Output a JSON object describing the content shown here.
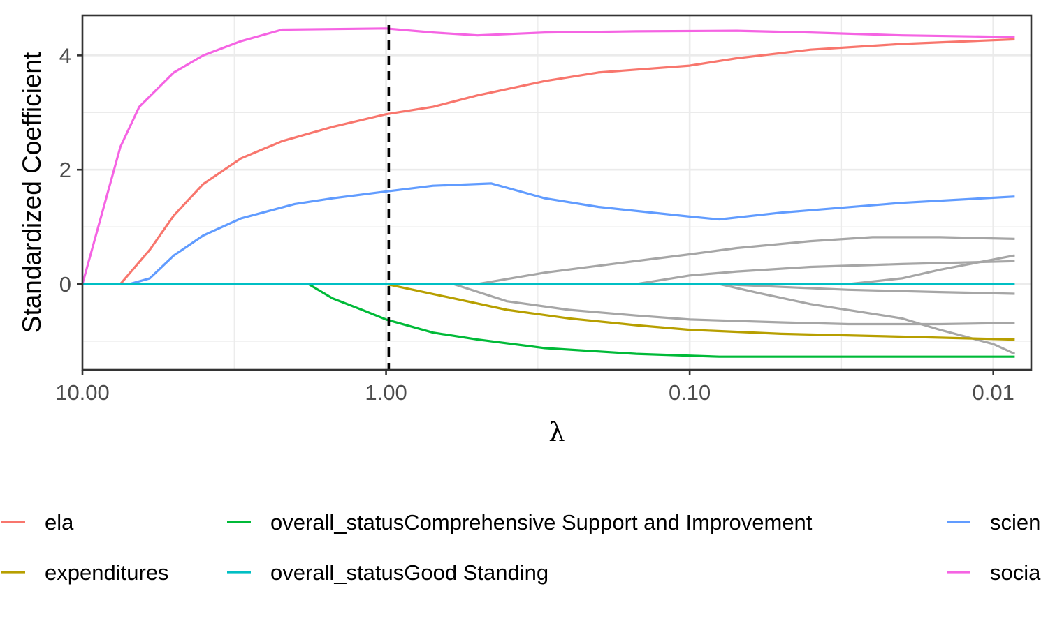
{
  "chart_data": {
    "type": "line",
    "xlabel": "λ",
    "ylabel": "Standardized Coefficient",
    "x_scale": "log10-reversed",
    "xlim": [
      10.0,
      0.0075
    ],
    "ylim": [
      -1.5,
      4.7
    ],
    "x_ticks": [
      {
        "value": 10.0,
        "label": "10.00"
      },
      {
        "value": 1.0,
        "label": "1.00"
      },
      {
        "value": 0.1,
        "label": "0.10"
      },
      {
        "value": 0.01,
        "label": "0.01"
      }
    ],
    "y_ticks": [
      {
        "value": 0,
        "label": "0"
      },
      {
        "value": 2,
        "label": "2"
      },
      {
        "value": 4,
        "label": "4"
      }
    ],
    "vline": {
      "x": 0.98,
      "style": "dashed",
      "color": "#000000"
    },
    "grid": true,
    "legend_position": "bottom",
    "series": [
      {
        "name": "social",
        "color": "#F564E3",
        "legend": true,
        "points": [
          [
            10,
            0
          ],
          [
            7.5,
            2.4
          ],
          [
            6.5,
            3.1
          ],
          [
            5,
            3.7
          ],
          [
            4,
            4.0
          ],
          [
            3,
            4.25
          ],
          [
            2.2,
            4.45
          ],
          [
            1.5,
            4.46
          ],
          [
            1.0,
            4.47
          ],
          [
            0.7,
            4.4
          ],
          [
            0.5,
            4.35
          ],
          [
            0.3,
            4.4
          ],
          [
            0.15,
            4.42
          ],
          [
            0.07,
            4.43
          ],
          [
            0.04,
            4.4
          ],
          [
            0.02,
            4.35
          ],
          [
            0.0085,
            4.32
          ]
        ]
      },
      {
        "name": "ela",
        "color": "#F8766D",
        "legend": true,
        "points": [
          [
            10,
            0
          ],
          [
            7.5,
            0
          ],
          [
            6,
            0.6
          ],
          [
            5,
            1.2
          ],
          [
            4,
            1.75
          ],
          [
            3,
            2.2
          ],
          [
            2.2,
            2.5
          ],
          [
            1.5,
            2.75
          ],
          [
            1.0,
            2.97
          ],
          [
            0.7,
            3.1
          ],
          [
            0.5,
            3.3
          ],
          [
            0.3,
            3.55
          ],
          [
            0.2,
            3.7
          ],
          [
            0.1,
            3.82
          ],
          [
            0.07,
            3.95
          ],
          [
            0.04,
            4.1
          ],
          [
            0.02,
            4.2
          ],
          [
            0.0085,
            4.28
          ]
        ]
      },
      {
        "name": "science",
        "color": "#619CFF",
        "legend": true,
        "points": [
          [
            10,
            0
          ],
          [
            7,
            0
          ],
          [
            6,
            0.1
          ],
          [
            5,
            0.5
          ],
          [
            4,
            0.85
          ],
          [
            3,
            1.15
          ],
          [
            2,
            1.4
          ],
          [
            1.5,
            1.5
          ],
          [
            1.0,
            1.62
          ],
          [
            0.7,
            1.72
          ],
          [
            0.45,
            1.76
          ],
          [
            0.3,
            1.5
          ],
          [
            0.2,
            1.35
          ],
          [
            0.1,
            1.18
          ],
          [
            0.08,
            1.13
          ],
          [
            0.05,
            1.25
          ],
          [
            0.02,
            1.42
          ],
          [
            0.0085,
            1.53
          ]
        ]
      },
      {
        "name": "expenditures",
        "color": "#B79F00",
        "legend": true,
        "points": [
          [
            10,
            0
          ],
          [
            1.0,
            0
          ],
          [
            0.6,
            -0.25
          ],
          [
            0.4,
            -0.45
          ],
          [
            0.25,
            -0.6
          ],
          [
            0.15,
            -0.72
          ],
          [
            0.1,
            -0.8
          ],
          [
            0.05,
            -0.87
          ],
          [
            0.02,
            -0.92
          ],
          [
            0.0085,
            -0.97
          ]
        ]
      },
      {
        "name": "overall_statusComprehensive Support and Improvement",
        "color": "#00BA38",
        "legend": true,
        "points": [
          [
            10,
            0
          ],
          [
            1.8,
            0
          ],
          [
            1.5,
            -0.25
          ],
          [
            1.2,
            -0.45
          ],
          [
            1.0,
            -0.62
          ],
          [
            0.7,
            -0.85
          ],
          [
            0.5,
            -0.97
          ],
          [
            0.3,
            -1.12
          ],
          [
            0.15,
            -1.22
          ],
          [
            0.08,
            -1.27
          ],
          [
            0.04,
            -1.27
          ],
          [
            0.0085,
            -1.27
          ]
        ]
      },
      {
        "name": "overall_statusGood Standing",
        "color": "#00BFC4",
        "legend": true,
        "points": [
          [
            10,
            0
          ],
          [
            0.0085,
            0
          ]
        ]
      },
      {
        "name": "",
        "color": "#A6A6A6",
        "legend": false,
        "points": [
          [
            10,
            0
          ],
          [
            0.5,
            0
          ],
          [
            0.3,
            0.2
          ],
          [
            0.2,
            0.32
          ],
          [
            0.1,
            0.52
          ],
          [
            0.07,
            0.63
          ],
          [
            0.04,
            0.75
          ],
          [
            0.025,
            0.82
          ],
          [
            0.015,
            0.82
          ],
          [
            0.0085,
            0.79
          ]
        ]
      },
      {
        "name": "",
        "color": "#A6A6A6",
        "legend": false,
        "points": [
          [
            10,
            0
          ],
          [
            0.15,
            0
          ],
          [
            0.1,
            0.15
          ],
          [
            0.07,
            0.22
          ],
          [
            0.04,
            0.3
          ],
          [
            0.02,
            0.35
          ],
          [
            0.0085,
            0.4
          ]
        ]
      },
      {
        "name": "",
        "color": "#A6A6A6",
        "legend": false,
        "points": [
          [
            10,
            0
          ],
          [
            0.03,
            0
          ],
          [
            0.02,
            0.1
          ],
          [
            0.015,
            0.25
          ],
          [
            0.01,
            0.43
          ],
          [
            0.0085,
            0.5
          ]
        ]
      },
      {
        "name": "",
        "color": "#A6A6A6",
        "legend": false,
        "points": [
          [
            10,
            0
          ],
          [
            0.08,
            0
          ],
          [
            0.05,
            -0.05
          ],
          [
            0.03,
            -0.1
          ],
          [
            0.015,
            -0.14
          ],
          [
            0.0085,
            -0.17
          ]
        ]
      },
      {
        "name": "",
        "color": "#A6A6A6",
        "legend": false,
        "points": [
          [
            10,
            0
          ],
          [
            0.6,
            0
          ],
          [
            0.4,
            -0.3
          ],
          [
            0.25,
            -0.45
          ],
          [
            0.15,
            -0.55
          ],
          [
            0.1,
            -0.62
          ],
          [
            0.05,
            -0.67
          ],
          [
            0.03,
            -0.7
          ],
          [
            0.015,
            -0.7
          ],
          [
            0.0085,
            -0.68
          ]
        ]
      },
      {
        "name": "",
        "color": "#A6A6A6",
        "legend": false,
        "points": [
          [
            10,
            0
          ],
          [
            0.08,
            0
          ],
          [
            0.06,
            -0.15
          ],
          [
            0.04,
            -0.35
          ],
          [
            0.02,
            -0.6
          ],
          [
            0.015,
            -0.8
          ],
          [
            0.01,
            -1.05
          ],
          [
            0.0085,
            -1.22
          ]
        ]
      }
    ],
    "legend": [
      {
        "label": "ela",
        "color": "#F8766D"
      },
      {
        "label": "expenditures",
        "color": "#B79F00"
      },
      {
        "label": "overall_statusComprehensive Support and Improvement",
        "color": "#00BA38"
      },
      {
        "label": "overall_statusGood Standing",
        "color": "#00BFC4"
      },
      {
        "label": "scien",
        "color": "#619CFF"
      },
      {
        "label": "socia",
        "color": "#F564E3"
      }
    ]
  }
}
